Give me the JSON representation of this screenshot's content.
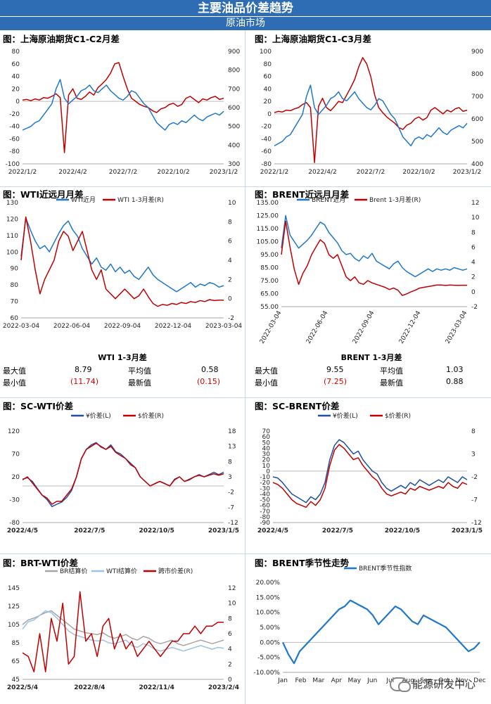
{
  "header": {
    "title": "主要油品价差趋势",
    "subtitle": "原油市场"
  },
  "watermark": "能源研发中心",
  "colors": {
    "blue": "#1f77c9",
    "red": "#c00000",
    "gray": "#a5a5a5",
    "lightblue": "#9cc3e6"
  },
  "chart_data": [
    {
      "id": "c1",
      "title": "图：上海原油期货C1-C2月差",
      "type": "line",
      "xticks": [
        "2022/1/2",
        "2022/4/2",
        "2022/7/2",
        "2022/10/2",
        "2023/1/2"
      ],
      "yticks_left": [
        "80",
        "60",
        "40",
        "20",
        "0",
        "-20",
        "-40",
        "-60",
        "-80",
        "-100"
      ],
      "yticks_right": [
        "900",
        "800",
        "700",
        "600",
        "500",
        "400",
        "300"
      ],
      "ylim_left": [
        -100,
        80
      ],
      "ylim_right": [
        300,
        900
      ],
      "series": [
        {
          "axis": "left",
          "color": "#c00000",
          "values": [
            2,
            3,
            1,
            4,
            2,
            6,
            5,
            8,
            12,
            6,
            -82,
            10,
            20,
            5,
            3,
            8,
            15,
            10,
            22,
            28,
            35,
            45,
            60,
            62,
            40,
            20,
            5,
            0,
            -5,
            -8,
            -10,
            -15,
            -18,
            -12,
            -10,
            -5,
            -3,
            -8,
            -5,
            5,
            8,
            3,
            -2,
            4,
            2,
            6,
            8,
            3,
            5
          ]
        },
        {
          "axis": "right",
          "color": "#1f77c9",
          "values": [
            480,
            490,
            500,
            520,
            530,
            560,
            590,
            620,
            700,
            750,
            650,
            620,
            640,
            660,
            690,
            700,
            720,
            690,
            680,
            700,
            720,
            690,
            670,
            650,
            640,
            660,
            690,
            680,
            650,
            620,
            600,
            560,
            520,
            500,
            480,
            510,
            520,
            510,
            530,
            520,
            540,
            560,
            540,
            530,
            550,
            560,
            570,
            560,
            580
          ]
        }
      ]
    },
    {
      "id": "c2",
      "title": "图：上海原油期货C1-C3月差",
      "type": "line",
      "xticks": [
        "2022/1/2",
        "2022/4/2",
        "2022/7/2",
        "2022/10/2",
        "2023/1/2"
      ],
      "yticks_left": [
        "100",
        "80",
        "60",
        "40",
        "20",
        "0",
        "-20",
        "-40",
        "-60",
        "-80"
      ],
      "yticks_right": [
        "900",
        "800",
        "700",
        "600",
        "500",
        "400"
      ],
      "ylim_left": [
        -80,
        100
      ],
      "ylim_right": [
        400,
        900
      ],
      "series": [
        {
          "axis": "left",
          "color": "#c00000",
          "values": [
            2,
            4,
            3,
            6,
            5,
            8,
            10,
            15,
            18,
            10,
            -78,
            12,
            25,
            10,
            5,
            12,
            20,
            18,
            30,
            42,
            55,
            75,
            90,
            80,
            60,
            30,
            10,
            2,
            -5,
            -10,
            -15,
            -22,
            -25,
            -18,
            -15,
            -8,
            -5,
            -10,
            -6,
            6,
            10,
            5,
            0,
            6,
            3,
            8,
            10,
            4,
            6
          ]
        },
        {
          "axis": "right",
          "color": "#1f77c9",
          "values": [
            480,
            490,
            500,
            520,
            530,
            560,
            590,
            620,
            700,
            750,
            650,
            620,
            640,
            660,
            690,
            700,
            720,
            690,
            680,
            700,
            720,
            690,
            670,
            650,
            640,
            660,
            690,
            680,
            650,
            620,
            600,
            560,
            520,
            500,
            480,
            510,
            520,
            510,
            530,
            520,
            540,
            560,
            540,
            530,
            550,
            560,
            570,
            560,
            580
          ]
        }
      ]
    },
    {
      "id": "c3",
      "title": "图：WTI近远月月差",
      "type": "line",
      "legend": [
        "WTI近月",
        "WTI 1-3月差(R)"
      ],
      "xticks": [
        "2022-03-04",
        "2022-06-04",
        "2022-09-04",
        "2022-12-04",
        "2023-03-04"
      ],
      "yticks_left": [
        "130",
        "120",
        "110",
        "100",
        "90",
        "80",
        "70",
        "60"
      ],
      "yticks_right": [
        "10",
        "8",
        "6",
        "4",
        "2",
        "0",
        "-2"
      ],
      "ylim_left": [
        55,
        130
      ],
      "ylim_right": [
        -2,
        10
      ],
      "series": [
        {
          "axis": "left",
          "color": "#1f77c9",
          "name": "WTI近月",
          "values": [
            95,
            120,
            112,
            105,
            100,
            102,
            98,
            104,
            110,
            115,
            118,
            112,
            108,
            100,
            95,
            90,
            94,
            88,
            86,
            90,
            85,
            88,
            84,
            86,
            82,
            80,
            84,
            88,
            83,
            80,
            78,
            76,
            74,
            72,
            74,
            76,
            78,
            75,
            77,
            76,
            78,
            77,
            75,
            76
          ]
        },
        {
          "axis": "right",
          "color": "#c00000",
          "name": "WTI 1-3月差(R)",
          "values": [
            4,
            8.5,
            6,
            3,
            0.5,
            2,
            3,
            4,
            6,
            7,
            6.5,
            5,
            6,
            7,
            5,
            3,
            2,
            3,
            1,
            0.5,
            0,
            0.5,
            1,
            0.5,
            0,
            0.3,
            1,
            0.2,
            -0.5,
            -0.8,
            -0.6,
            -0.7,
            -0.5,
            -0.6,
            -0.4,
            -0.5,
            -0.3,
            -0.4,
            -0.2,
            -0.3,
            -0.1,
            -0.2,
            -0.15,
            -0.15
          ]
        }
      ]
    },
    {
      "id": "c4",
      "title": "图：BRENT近远月月差",
      "type": "line",
      "legend": [
        "BRENT近月",
        "Brent 1-3月差(R)"
      ],
      "xticks": [
        "2022-03-04",
        "2022-06-04",
        "2022-09-04",
        "2022-12-04",
        "2023-03-04"
      ],
      "yticks_left": [
        "135.00",
        "125.00",
        "115.00",
        "105.00",
        "95.00",
        "85.00",
        "75.00",
        "65.00",
        "55.00"
      ],
      "yticks_right": [
        "12",
        "10",
        "8",
        "6",
        "4",
        "2",
        "0",
        "-2"
      ],
      "ylim_left": [
        55,
        135
      ],
      "ylim_right": [
        -2,
        12
      ],
      "series": [
        {
          "axis": "left",
          "color": "#1f77c9",
          "name": "BRENT近月",
          "values": [
            100,
            125,
            110,
            105,
            100,
            103,
            106,
            110,
            115,
            120,
            118,
            112,
            108,
            104,
            98,
            95,
            96,
            92,
            90,
            94,
            92,
            96,
            90,
            88,
            86,
            84,
            88,
            90,
            85,
            82,
            80,
            78,
            80,
            82,
            84,
            82,
            84,
            83,
            84,
            83,
            85,
            84,
            83,
            84
          ]
        },
        {
          "axis": "right",
          "color": "#c00000",
          "name": "Brent 1-3月差(R)",
          "values": [
            5,
            9.5,
            6,
            3,
            1,
            2.5,
            3.5,
            5,
            6,
            7,
            6.5,
            5,
            4.5,
            5,
            3.5,
            2,
            1.5,
            2,
            1.2,
            1,
            1.5,
            1.2,
            1,
            0.8,
            0.6,
            0.3,
            0.5,
            0.2,
            -0.5,
            -0.3,
            0,
            0.2,
            0.5,
            0.6,
            0.7,
            0.8,
            0.9,
            0.9,
            0.85,
            0.9,
            0.88,
            0.87,
            0.88,
            0.88
          ]
        }
      ]
    },
    {
      "id": "c5",
      "title": "图：SC-WTI价差",
      "type": "line",
      "legend": [
        "¥价差(L)",
        "$价差(R)"
      ],
      "xticks": [
        "2022/4/5",
        "2022/7/5",
        "2022/10/5",
        "2023/1/5"
      ],
      "yticks_left": [
        "120",
        "70",
        "20",
        "-30",
        "-80"
      ],
      "yticks_right": [
        "18",
        "13",
        "8",
        "3",
        "-2",
        "-7",
        "-12"
      ],
      "ylim_left": [
        -80,
        120
      ],
      "ylim_right": [
        -12,
        18
      ],
      "series": [
        {
          "axis": "left",
          "color": "#1f4fa0",
          "name": "¥价差(L)",
          "values": [
            15,
            18,
            10,
            -5,
            -20,
            -30,
            -45,
            -40,
            -35,
            -25,
            -10,
            20,
            60,
            80,
            90,
            95,
            85,
            80,
            90,
            75,
            70,
            60,
            50,
            40,
            20,
            10,
            0,
            5,
            10,
            5,
            0,
            15,
            20,
            10,
            15,
            20,
            25,
            20,
            25,
            30,
            25,
            30
          ]
        },
        {
          "axis": "right",
          "color": "#c00000",
          "name": "$价差(R)",
          "values": [
            2,
            3,
            1,
            -1,
            -3,
            -4,
            -6,
            -5,
            -5,
            -3,
            -1,
            3,
            9,
            12,
            13,
            14,
            13,
            12,
            13,
            11,
            10,
            9,
            7,
            6,
            3,
            1.5,
            0,
            0.8,
            1.5,
            0.8,
            0,
            2,
            3,
            1.5,
            2,
            3,
            3.5,
            3,
            3.5,
            4,
            3.5,
            4
          ]
        }
      ]
    },
    {
      "id": "c6",
      "title": "图：SC-BRENT价差",
      "type": "line",
      "legend": [
        "¥价差(L)",
        "$价差(R)"
      ],
      "xticks": [
        "2022/4/5",
        "2022/7/5",
        "2022/10/5",
        "2023/1/5"
      ],
      "yticks_left": [
        "70",
        "60",
        "50",
        "40",
        "30",
        "20",
        "10",
        "0",
        "-10",
        "-20",
        "-30",
        "-40",
        "-50",
        "-60",
        "-70",
        "-80",
        "-90"
      ],
      "yticks_right": [
        "8",
        "3",
        "-2",
        "-7",
        "-12"
      ],
      "ylim_left": [
        -90,
        70
      ],
      "ylim_right": [
        -12,
        12
      ],
      "series": [
        {
          "axis": "left",
          "color": "#1f4fa0",
          "name": "¥价差(L)",
          "values": [
            -10,
            -12,
            -20,
            -30,
            -40,
            -45,
            -50,
            -55,
            -45,
            -50,
            -40,
            -20,
            20,
            45,
            55,
            50,
            40,
            30,
            35,
            20,
            10,
            0,
            -5,
            -20,
            -30,
            -35,
            -30,
            -25,
            -30,
            -20,
            -25,
            -15,
            -20,
            -25,
            -20,
            -15,
            -20,
            -10,
            -15,
            -20,
            -10,
            -15
          ]
        },
        {
          "axis": "right",
          "color": "#c00000",
          "name": "$价差(R)",
          "values": [
            -1.5,
            -2,
            -3,
            -4.5,
            -6,
            -7,
            -7.5,
            -8,
            -6.5,
            -7.5,
            -6,
            -3,
            3,
            7,
            8.5,
            7.5,
            6,
            4.5,
            5,
            3,
            1.5,
            0,
            -1,
            -3,
            -4.5,
            -5,
            -4.5,
            -4,
            -4.5,
            -3,
            -3.5,
            -2.5,
            -3,
            -3.5,
            -3,
            -2.5,
            -3,
            -1.5,
            -2.5,
            -3,
            -1.5,
            -2
          ]
        }
      ]
    },
    {
      "id": "c7",
      "title": "图：BRT-WTI价差",
      "type": "line",
      "legend": [
        "BR结算价",
        "WTI结算价",
        "跨市价差(R)"
      ],
      "xticks": [
        "2022/5/4",
        "2022/8/4",
        "2022/11/4",
        "2023/2/4"
      ],
      "yticks_left": [
        "145",
        "125",
        "105",
        "85",
        "65",
        "45"
      ],
      "yticks_right": [
        "12",
        "10",
        "8",
        "6",
        "4",
        "2",
        "0"
      ],
      "ylim_left": [
        45,
        145
      ],
      "ylim_right": [
        0,
        12
      ],
      "series": [
        {
          "axis": "left",
          "color": "#a5a5a5",
          "name": "BR结算价",
          "values": [
            105,
            110,
            112,
            115,
            118,
            120,
            115,
            110,
            105,
            100,
            98,
            96,
            95,
            94,
            96,
            92,
            90,
            92,
            94,
            90,
            88,
            92,
            90,
            86,
            84,
            86,
            88,
            84,
            82,
            84,
            86,
            88,
            86,
            84,
            86,
            88
          ]
        },
        {
          "axis": "left",
          "color": "#9cc3e6",
          "name": "WTI结算价",
          "values": [
            100,
            108,
            110,
            115,
            120,
            118,
            112,
            105,
            98,
            94,
            92,
            90,
            88,
            87,
            88,
            85,
            84,
            86,
            88,
            82,
            80,
            84,
            82,
            78,
            76,
            78,
            80,
            78,
            76,
            78,
            80,
            82,
            80,
            78,
            80,
            79
          ]
        },
        {
          "axis": "right",
          "color": "#c00000",
          "name": "跨市价差(R)",
          "values": [
            3.5,
            3,
            1,
            6,
            1,
            8,
            5,
            10,
            2,
            3,
            11.5,
            5,
            6,
            3,
            7,
            8,
            4,
            6,
            4,
            5,
            3,
            4,
            5,
            4,
            3,
            4,
            5,
            5,
            6,
            6,
            7,
            6,
            7,
            7,
            7.5,
            7.5
          ]
        }
      ]
    },
    {
      "id": "c8",
      "title": "图：BRENT季节性走势",
      "type": "line",
      "legend": [
        "BRENT季节性指数"
      ],
      "xticks": [
        "Jan",
        "Feb",
        "Mar",
        "Apr",
        "May",
        "Jun",
        "Jul",
        "Aug",
        "Sep",
        "Oct",
        "Nov",
        "Dec"
      ],
      "yticks_left": [
        "20.00%",
        "15.00%",
        "10.00%",
        "5.00%",
        "0.00%",
        "-5.00%",
        "-10.00%"
      ],
      "ylim_left": [
        -10,
        20
      ],
      "series": [
        {
          "axis": "left",
          "color": "#1f77c9",
          "name": "BRENT季节性指数",
          "values": [
            0,
            -4,
            -7,
            -3,
            -1,
            1,
            3,
            5,
            7,
            9,
            11,
            12,
            14,
            13,
            12,
            11,
            9,
            6,
            8,
            10,
            12,
            11,
            9,
            7,
            6,
            9,
            8,
            7,
            6,
            5,
            3,
            1,
            -1,
            -3,
            -2,
            0
          ]
        }
      ]
    }
  ],
  "stats": [
    {
      "title": "WTI 1-3月差",
      "rows": [
        [
          "最大值",
          "8.79",
          "平均值",
          "0.58"
        ],
        [
          "最小值",
          "(11.74)",
          "最新值",
          "(0.15)"
        ]
      ]
    },
    {
      "title": "BRENT 1-3月差",
      "rows": [
        [
          "最大值",
          "9.55",
          "平均值",
          "1.03"
        ],
        [
          "最小值",
          "(7.25)",
          "最新值",
          "0.88"
        ]
      ]
    }
  ]
}
